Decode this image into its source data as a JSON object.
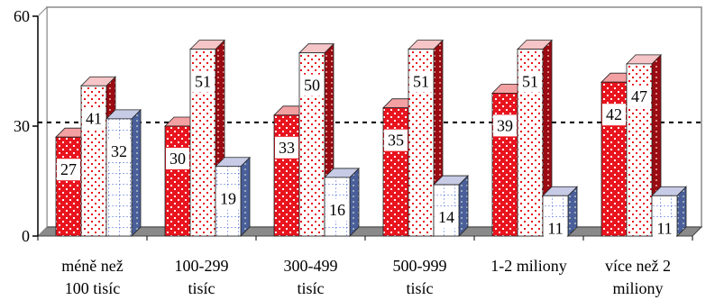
{
  "chart_data": {
    "type": "bar",
    "categories": [
      [
        "méně než",
        "100 tisíc"
      ],
      [
        "100-299",
        "tisíc"
      ],
      [
        "300-499",
        "tisíc"
      ],
      [
        "500-999",
        "tisíc"
      ],
      [
        "1-2 miliony"
      ],
      [
        "více než 2",
        "miliony"
      ]
    ],
    "series": [
      {
        "values": [
          27,
          30,
          33,
          35,
          39,
          42
        ],
        "color": "#e8141e",
        "pattern": "red-dots"
      },
      {
        "values": [
          41,
          51,
          50,
          51,
          51,
          47
        ],
        "color": "#e8141e",
        "pattern": "pink-dots"
      },
      {
        "values": [
          32,
          19,
          16,
          14,
          11,
          11
        ],
        "color": "#3a5bd0",
        "pattern": "blue-grid"
      }
    ],
    "data_labels": [
      [
        "27",
        "41",
        "32"
      ],
      [
        "30",
        "51",
        "19"
      ],
      [
        "33",
        "50",
        "16"
      ],
      [
        "35",
        "51",
        "14"
      ],
      [
        "39",
        "51",
        "11"
      ],
      [
        "42",
        "47",
        "11"
      ]
    ],
    "y_ticks": [
      "0",
      "30",
      "60"
    ],
    "ylim": [
      0,
      60
    ],
    "reference_line": 31,
    "grid": false,
    "legend": "none",
    "title": "",
    "xlabel": "",
    "ylabel": ""
  }
}
